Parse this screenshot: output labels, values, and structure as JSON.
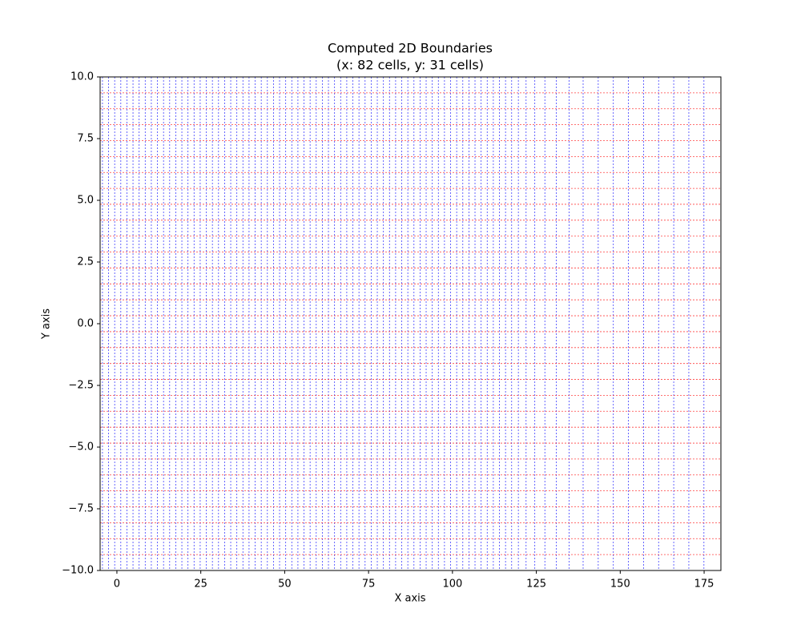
{
  "chart_data": {
    "type": "boundary_grid",
    "title": "Computed 2D Boundaries",
    "subtitle": "(x: 82 cells, y: 31 cells)",
    "x_label": "X axis",
    "y_label": "Y axis",
    "xlim": [
      -5,
      180
    ],
    "ylim": [
      -10,
      10
    ],
    "xticks": [
      0,
      25,
      50,
      75,
      100,
      125,
      150,
      175
    ],
    "yticks": [
      {
        "value": -10,
        "label": "−10.0"
      },
      {
        "value": -7.5,
        "label": "−7.5"
      },
      {
        "value": -5,
        "label": "−5.0"
      },
      {
        "value": -2.5,
        "label": "−2.5"
      },
      {
        "value": 0,
        "label": "0.0"
      },
      {
        "value": 2.5,
        "label": "2.5"
      },
      {
        "value": 5,
        "label": "5.0"
      },
      {
        "value": 7.5,
        "label": "7.5"
      },
      {
        "value": 10,
        "label": "10.0"
      }
    ],
    "x_boundaries": {
      "color": "#0000ff",
      "values": [
        -4.3,
        -2.48,
        -0.66,
        1.16,
        2.98,
        4.8,
        6.62,
        8.44,
        10.26,
        12.08,
        13.9,
        15.72,
        17.54,
        19.36,
        21.18,
        23.0,
        24.82,
        26.64,
        28.46,
        30.28,
        32.1,
        33.92,
        35.74,
        37.56,
        39.38,
        41.2,
        43.02,
        44.84,
        46.66,
        48.48,
        50.3,
        52.12,
        53.94,
        55.76,
        57.58,
        59.4,
        61.22,
        63.04,
        64.86,
        66.68,
        68.5,
        70.32,
        72.14,
        73.96,
        75.78,
        77.6,
        79.42,
        81.24,
        83.06,
        84.88,
        86.7,
        88.52,
        90.34,
        92.16,
        93.98,
        95.8,
        97.62,
        99.44,
        101.26,
        103.08,
        104.9,
        106.72,
        108.54,
        110.36,
        112.18,
        114.0,
        115.82,
        117.64,
        119.64,
        121.94,
        124.54,
        127.54,
        130.94,
        134.74,
        138.94,
        143.44,
        147.94,
        152.44,
        156.94,
        161.44,
        165.94,
        170.44,
        174.94
      ]
    },
    "y_boundaries": {
      "color": "#ff0000",
      "values": [
        -10,
        -9.355,
        -8.71,
        -8.065,
        -7.419,
        -6.774,
        -6.129,
        -5.484,
        -4.839,
        -4.194,
        -3.548,
        -2.903,
        -2.258,
        -1.613,
        -0.968,
        -0.323,
        0.323,
        0.968,
        1.613,
        2.258,
        2.903,
        3.548,
        4.194,
        4.839,
        5.484,
        6.129,
        6.774,
        7.419,
        8.065,
        8.71,
        9.355,
        10
      ]
    }
  }
}
